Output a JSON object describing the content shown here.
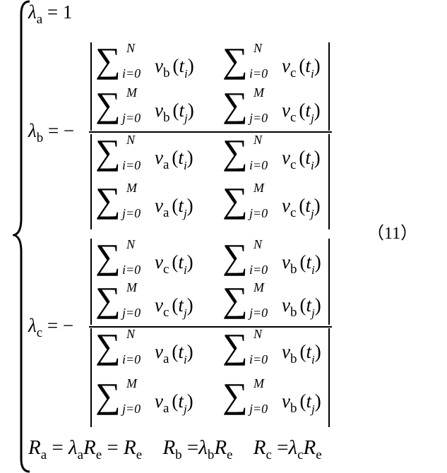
{
  "equation_number": "（11）",
  "lambda_a": {
    "symbol": "λ",
    "sub": "a",
    "rhs": "= 1"
  },
  "lambda_b": {
    "symbol": "λ",
    "sub": "b",
    "rhs": "= −"
  },
  "lambda_c": {
    "symbol": "λ",
    "sub": "c",
    "rhs": "= −"
  },
  "determinants": {
    "b_num": [
      [
        {
          "sup": "N",
          "sub": "i=0",
          "v": "b",
          "t": "i"
        },
        {
          "sup": "N",
          "sub": "i=0",
          "v": "c",
          "t": "i"
        }
      ],
      [
        {
          "sup": "M",
          "sub": "j=0",
          "v": "b",
          "t": "j"
        },
        {
          "sup": "M",
          "sub": "j=0",
          "v": "c",
          "t": "j"
        }
      ]
    ],
    "b_den": [
      [
        {
          "sup": "N",
          "sub": "i=0",
          "v": "a",
          "t": "i"
        },
        {
          "sup": "N",
          "sub": "i=0",
          "v": "c",
          "t": "i"
        }
      ],
      [
        {
          "sup": "M",
          "sub": "j=0",
          "v": "a",
          "t": "j"
        },
        {
          "sup": "M",
          "sub": "j=0",
          "v": "c",
          "t": "j"
        }
      ]
    ],
    "c_num": [
      [
        {
          "sup": "N",
          "sub": "i=0",
          "v": "c",
          "t": "i"
        },
        {
          "sup": "N",
          "sub": "i=0",
          "v": "b",
          "t": "i"
        }
      ],
      [
        {
          "sup": "M",
          "sub": "j=0",
          "v": "c",
          "t": "j"
        },
        {
          "sup": "M",
          "sub": "j=0",
          "v": "b",
          "t": "j"
        }
      ]
    ],
    "c_den": [
      [
        {
          "sup": "N",
          "sub": "i=0",
          "v": "a",
          "t": "i"
        },
        {
          "sup": "N",
          "sub": "i=0",
          "v": "b",
          "t": "i"
        }
      ],
      [
        {
          "sup": "M",
          "sub": "j=0",
          "v": "a",
          "t": "j"
        },
        {
          "sup": "M",
          "sub": "j=0",
          "v": "b",
          "t": "j"
        }
      ]
    ]
  },
  "resistance_line": {
    "ra": "R",
    "ra_sub": "a",
    "eq1": " = ",
    "la": "λ",
    "la_sub": "a",
    "re1": "R",
    "re1_sub": "e",
    "eq2": " = ",
    "re2": "R",
    "re2_sub": "e",
    "rb": "R",
    "rb_sub": "b",
    "eq3": " =",
    "lb": "λ",
    "lb_sub": "b",
    "re3": "R",
    "re3_sub": "e",
    "rc": "R",
    "rc_sub": "c",
    "eq4": " =",
    "lc": "λ",
    "lc_sub": "c",
    "re4": "R",
    "re4_sub": "e"
  }
}
